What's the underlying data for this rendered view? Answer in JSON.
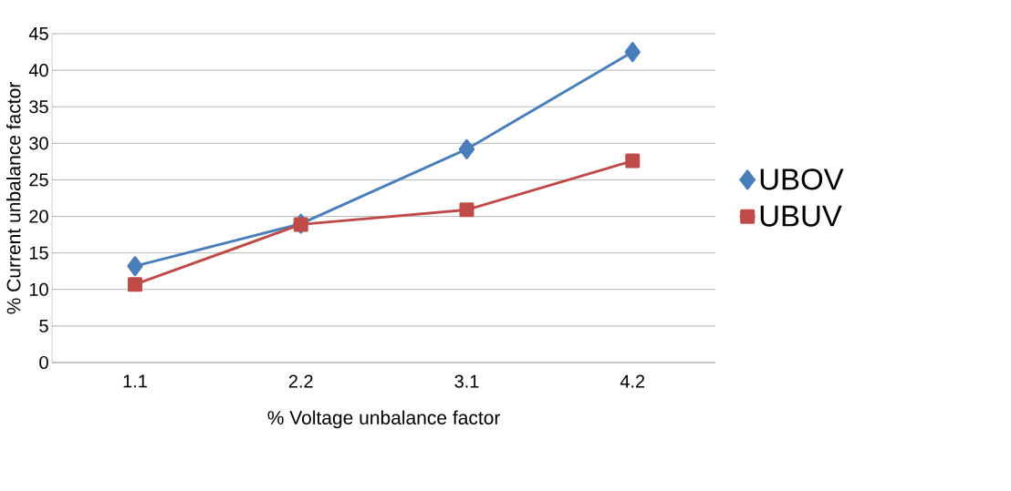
{
  "chart_data": {
    "type": "line",
    "xlabel": "% Voltage unbalance factor",
    "ylabel": "% Current unbalance factor",
    "categories": [
      "1.1",
      "2.2",
      "3.1",
      "4.2"
    ],
    "series": [
      {
        "name": "UBOV",
        "color": "#4a7ebb",
        "marker": "diamond",
        "values": [
          13.2,
          19.0,
          29.2,
          42.5
        ]
      },
      {
        "name": "UBUV",
        "color": "#be4b48",
        "marker": "square",
        "values": [
          10.7,
          18.9,
          20.9,
          27.6
        ]
      }
    ],
    "ylim": [
      0,
      45
    ],
    "yticks": [
      0,
      5,
      10,
      15,
      20,
      25,
      30,
      35,
      40,
      45
    ],
    "grid": "y",
    "legend": "right",
    "line_style": "solid"
  }
}
